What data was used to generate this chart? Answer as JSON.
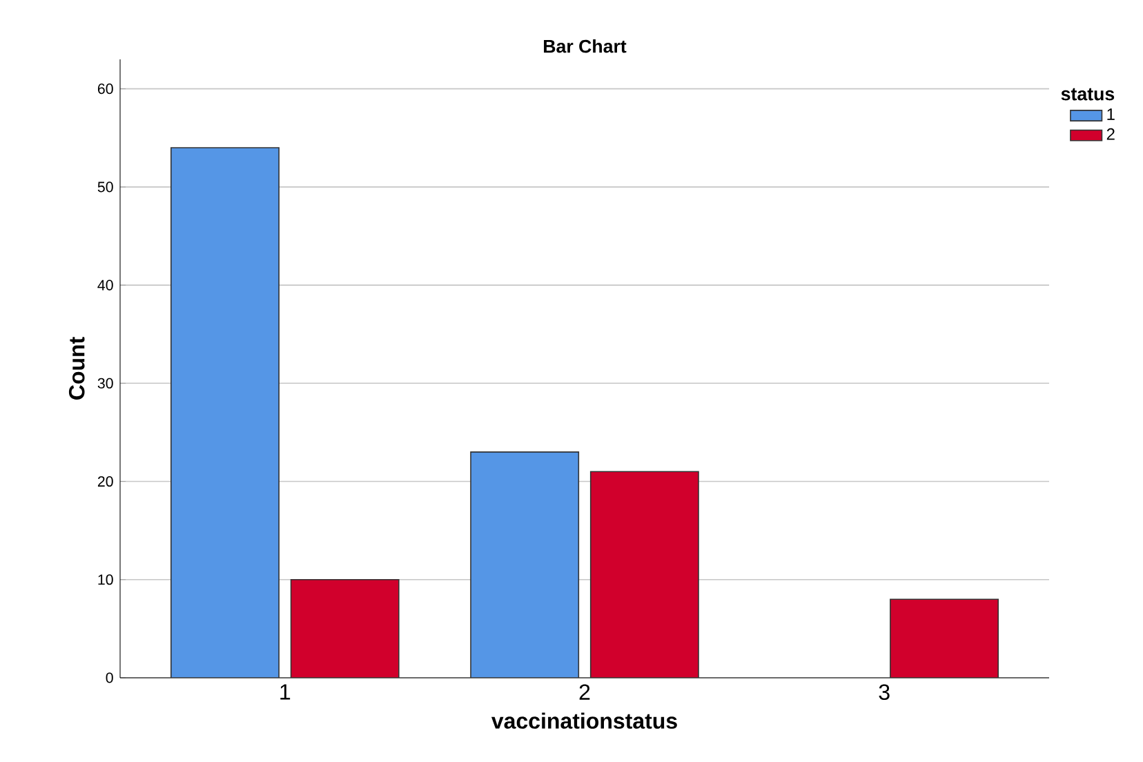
{
  "chart_data": {
    "type": "bar",
    "title": "Bar Chart",
    "xlabel": "vaccinationstatus",
    "ylabel": "Count",
    "legend_title": "status",
    "categories": [
      "1",
      "2",
      "3"
    ],
    "series": [
      {
        "name": "1",
        "color": "#5596e6",
        "values": [
          54,
          23,
          null
        ]
      },
      {
        "name": "2",
        "color": "#d1002c",
        "values": [
          10,
          21,
          8
        ]
      }
    ],
    "ylim": [
      0,
      63
    ],
    "yticks": [
      0,
      10,
      20,
      30,
      40,
      50,
      60
    ],
    "grid": "y",
    "legend": "top right"
  }
}
